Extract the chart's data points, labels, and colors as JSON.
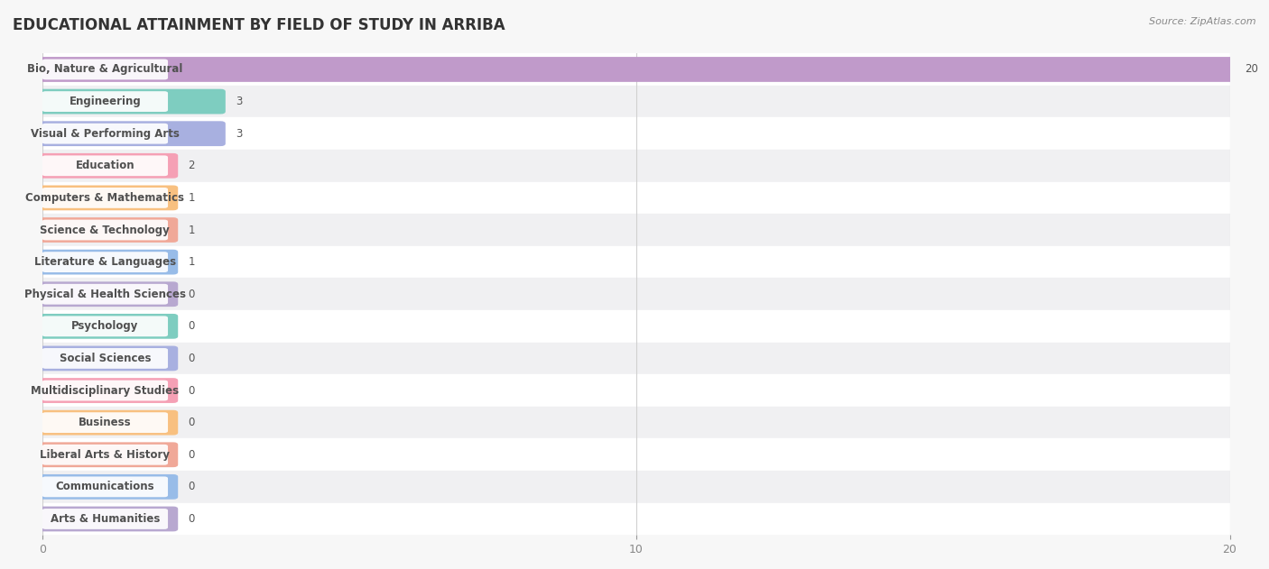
{
  "title": "EDUCATIONAL ATTAINMENT BY FIELD OF STUDY IN ARRIBA",
  "source": "Source: ZipAtlas.com",
  "categories": [
    "Bio, Nature & Agricultural",
    "Engineering",
    "Visual & Performing Arts",
    "Education",
    "Computers & Mathematics",
    "Science & Technology",
    "Literature & Languages",
    "Physical & Health Sciences",
    "Psychology",
    "Social Sciences",
    "Multidisciplinary Studies",
    "Business",
    "Liberal Arts & History",
    "Communications",
    "Arts & Humanities"
  ],
  "values": [
    20,
    3,
    3,
    2,
    1,
    1,
    1,
    0,
    0,
    0,
    0,
    0,
    0,
    0,
    0
  ],
  "bar_colors": [
    "#c09aca",
    "#7ecdc0",
    "#a8b0e0",
    "#f5a0b5",
    "#f8c080",
    "#f0a898",
    "#98bce8",
    "#b8a8d0",
    "#7ecdc0",
    "#a8b0e0",
    "#f5a0b5",
    "#f8c080",
    "#f0a898",
    "#98bce8",
    "#b8a8d0"
  ],
  "xlim": [
    0,
    20
  ],
  "xticks": [
    0,
    10,
    20
  ],
  "background_color": "#f7f7f7",
  "row_colors": [
    "#ffffff",
    "#f0f0f2"
  ],
  "bar_height": 0.62,
  "min_bar_width": 2.2,
  "title_fontsize": 12,
  "label_fontsize": 8.5,
  "value_fontsize": 8.5
}
